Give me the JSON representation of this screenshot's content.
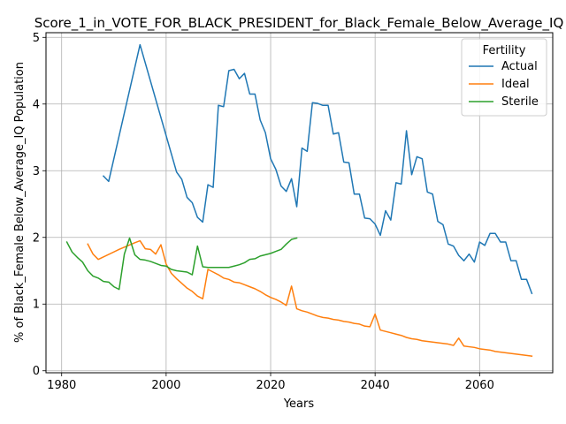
{
  "chart_data": {
    "type": "line",
    "title": "Score_1_in_VOTE_FOR_BLACK_PRESIDENT_for_Black_Female_Below_Average_IQ",
    "xlabel": "Years",
    "ylabel": "% of Black_Female Below_Average_IQ Population",
    "xlim": [
      1977,
      2074
    ],
    "ylim": [
      -0.03,
      5.07
    ],
    "xticks": [
      1980,
      2000,
      2020,
      2040,
      2060
    ],
    "yticks": [
      0,
      1,
      2,
      3,
      4,
      5
    ],
    "grid": true,
    "legend": {
      "title": "Fertility",
      "placement": "top-right"
    },
    "series": [
      {
        "name": "Actual",
        "color": "#1f77b4",
        "points": [
          [
            1988,
            2.92
          ],
          [
            1989,
            2.84
          ],
          [
            1995,
            4.89
          ],
          [
            2002,
            2.98
          ],
          [
            2003,
            2.87
          ],
          [
            2004,
            2.6
          ],
          [
            2005,
            2.52
          ],
          [
            2006,
            2.3
          ],
          [
            2007,
            2.23
          ],
          [
            2008,
            2.79
          ],
          [
            2009,
            2.75
          ],
          [
            2010,
            3.98
          ],
          [
            2011,
            3.96
          ],
          [
            2012,
            4.5
          ],
          [
            2013,
            4.52
          ],
          [
            2014,
            4.38
          ],
          [
            2015,
            4.46
          ],
          [
            2016,
            4.15
          ],
          [
            2017,
            4.15
          ],
          [
            2018,
            3.76
          ],
          [
            2019,
            3.57
          ],
          [
            2020,
            3.18
          ],
          [
            2021,
            3.02
          ],
          [
            2022,
            2.77
          ],
          [
            2023,
            2.69
          ],
          [
            2024,
            2.88
          ],
          [
            2025,
            2.46
          ],
          [
            2026,
            3.34
          ],
          [
            2027,
            3.29
          ],
          [
            2028,
            4.02
          ],
          [
            2029,
            4.01
          ],
          [
            2030,
            3.98
          ],
          [
            2031,
            3.98
          ],
          [
            2032,
            3.55
          ],
          [
            2033,
            3.57
          ],
          [
            2034,
            3.13
          ],
          [
            2035,
            3.12
          ],
          [
            2036,
            2.65
          ],
          [
            2037,
            2.65
          ],
          [
            2038,
            2.29
          ],
          [
            2039,
            2.28
          ],
          [
            2040,
            2.2
          ],
          [
            2041,
            2.03
          ],
          [
            2042,
            2.4
          ],
          [
            2043,
            2.26
          ],
          [
            2044,
            2.82
          ],
          [
            2045,
            2.8
          ],
          [
            2046,
            3.6
          ],
          [
            2047,
            2.94
          ],
          [
            2048,
            3.21
          ],
          [
            2049,
            3.18
          ],
          [
            2050,
            2.68
          ],
          [
            2051,
            2.65
          ],
          [
            2052,
            2.24
          ],
          [
            2053,
            2.19
          ],
          [
            2054,
            1.9
          ],
          [
            2055,
            1.87
          ],
          [
            2056,
            1.73
          ],
          [
            2057,
            1.65
          ],
          [
            2058,
            1.75
          ],
          [
            2059,
            1.63
          ],
          [
            2060,
            1.93
          ],
          [
            2061,
            1.88
          ],
          [
            2062,
            2.06
          ],
          [
            2063,
            2.06
          ],
          [
            2064,
            1.93
          ],
          [
            2065,
            1.93
          ],
          [
            2066,
            1.65
          ],
          [
            2067,
            1.65
          ],
          [
            2068,
            1.37
          ],
          [
            2069,
            1.37
          ],
          [
            2070,
            1.16
          ]
        ]
      },
      {
        "name": "Ideal",
        "color": "#ff7f0e",
        "points": [
          [
            1985,
            1.9
          ],
          [
            1986,
            1.75
          ],
          [
            1987,
            1.67
          ],
          [
            1991,
            1.82
          ],
          [
            1994,
            1.92
          ],
          [
            1995,
            1.95
          ],
          [
            1996,
            1.83
          ],
          [
            1997,
            1.82
          ],
          [
            1998,
            1.75
          ],
          [
            1999,
            1.89
          ],
          [
            2000,
            1.6
          ],
          [
            2001,
            1.46
          ],
          [
            2002,
            1.38
          ],
          [
            2003,
            1.31
          ],
          [
            2004,
            1.24
          ],
          [
            2005,
            1.19
          ],
          [
            2006,
            1.12
          ],
          [
            2007,
            1.08
          ],
          [
            2008,
            1.52
          ],
          [
            2009,
            1.48
          ],
          [
            2010,
            1.44
          ],
          [
            2011,
            1.39
          ],
          [
            2012,
            1.37
          ],
          [
            2013,
            1.33
          ],
          [
            2014,
            1.32
          ],
          [
            2015,
            1.29
          ],
          [
            2016,
            1.26
          ],
          [
            2017,
            1.23
          ],
          [
            2018,
            1.19
          ],
          [
            2019,
            1.14
          ],
          [
            2020,
            1.1
          ],
          [
            2021,
            1.07
          ],
          [
            2022,
            1.03
          ],
          [
            2023,
            0.98
          ],
          [
            2024,
            1.27
          ],
          [
            2025,
            0.93
          ],
          [
            2026,
            0.9
          ],
          [
            2027,
            0.88
          ],
          [
            2028,
            0.85
          ],
          [
            2029,
            0.82
          ],
          [
            2030,
            0.8
          ],
          [
            2031,
            0.79
          ],
          [
            2032,
            0.77
          ],
          [
            2033,
            0.76
          ],
          [
            2034,
            0.74
          ],
          [
            2035,
            0.73
          ],
          [
            2036,
            0.71
          ],
          [
            2037,
            0.7
          ],
          [
            2038,
            0.67
          ],
          [
            2039,
            0.66
          ],
          [
            2040,
            0.85
          ],
          [
            2041,
            0.61
          ],
          [
            2042,
            0.59
          ],
          [
            2043,
            0.57
          ],
          [
            2044,
            0.55
          ],
          [
            2045,
            0.53
          ],
          [
            2046,
            0.5
          ],
          [
            2047,
            0.48
          ],
          [
            2048,
            0.47
          ],
          [
            2049,
            0.45
          ],
          [
            2050,
            0.44
          ],
          [
            2051,
            0.43
          ],
          [
            2052,
            0.42
          ],
          [
            2053,
            0.41
          ],
          [
            2054,
            0.4
          ],
          [
            2055,
            0.38
          ],
          [
            2056,
            0.49
          ],
          [
            2057,
            0.37
          ],
          [
            2058,
            0.36
          ],
          [
            2059,
            0.35
          ],
          [
            2060,
            0.33
          ],
          [
            2061,
            0.32
          ],
          [
            2062,
            0.31
          ],
          [
            2063,
            0.29
          ],
          [
            2064,
            0.28
          ],
          [
            2065,
            0.27
          ],
          [
            2066,
            0.26
          ],
          [
            2067,
            0.25
          ],
          [
            2068,
            0.24
          ],
          [
            2069,
            0.23
          ],
          [
            2070,
            0.22
          ]
        ]
      },
      {
        "name": "Sterile",
        "color": "#2ca02c",
        "points": [
          [
            1981,
            1.93
          ],
          [
            1982,
            1.78
          ],
          [
            1983,
            1.7
          ],
          [
            1984,
            1.63
          ],
          [
            1985,
            1.5
          ],
          [
            1986,
            1.42
          ],
          [
            1987,
            1.39
          ],
          [
            1988,
            1.34
          ],
          [
            1989,
            1.33
          ],
          [
            1990,
            1.26
          ],
          [
            1991,
            1.22
          ],
          [
            1992,
            1.75
          ],
          [
            1993,
            1.99
          ],
          [
            1994,
            1.74
          ],
          [
            1995,
            1.67
          ],
          [
            1996,
            1.66
          ],
          [
            1997,
            1.64
          ],
          [
            1998,
            1.61
          ],
          [
            1999,
            1.58
          ],
          [
            2000,
            1.57
          ],
          [
            2001,
            1.52
          ],
          [
            2002,
            1.5
          ],
          [
            2003,
            1.49
          ],
          [
            2004,
            1.48
          ],
          [
            2005,
            1.44
          ],
          [
            2006,
            1.87
          ],
          [
            2007,
            1.56
          ],
          [
            2008,
            1.55
          ],
          [
            2009,
            1.55
          ],
          [
            2010,
            1.55
          ],
          [
            2011,
            1.55
          ],
          [
            2012,
            1.55
          ],
          [
            2013,
            1.57
          ],
          [
            2014,
            1.59
          ],
          [
            2015,
            1.62
          ],
          [
            2016,
            1.67
          ],
          [
            2017,
            1.68
          ],
          [
            2018,
            1.72
          ],
          [
            2019,
            1.74
          ],
          [
            2020,
            1.76
          ],
          [
            2021,
            1.79
          ],
          [
            2022,
            1.82
          ],
          [
            2023,
            1.9
          ],
          [
            2024,
            1.97
          ],
          [
            2025,
            1.99
          ]
        ]
      }
    ]
  }
}
